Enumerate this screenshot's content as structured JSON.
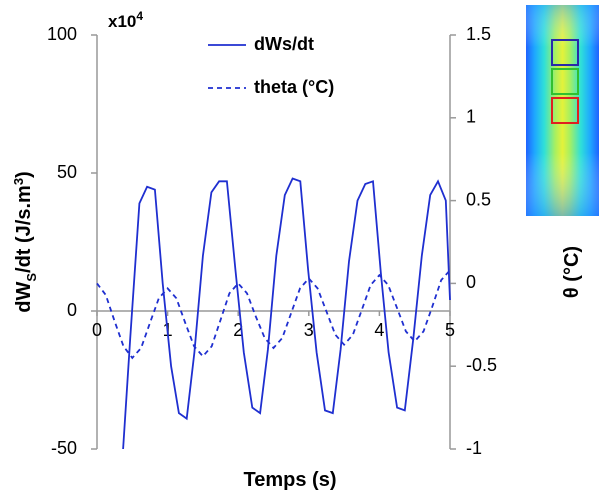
{
  "chart_data": {
    "type": "line",
    "xlabel": "Temps (s)",
    "ylabel": [
      "dW",
      "S",
      "/dt (J/s.m",
      "3",
      ")"
    ],
    "y2label": "θ (°C)",
    "y_multiplier": [
      "x10",
      "4"
    ],
    "xlim": [
      0,
      5
    ],
    "xticks": [
      0,
      1,
      2,
      3,
      4,
      5
    ],
    "ylim": [
      -50,
      100
    ],
    "yticks": [
      -50,
      0,
      50,
      100
    ],
    "y2lim": [
      -1,
      1.5
    ],
    "y2ticks": [
      -1,
      -0.5,
      0,
      0.5,
      1,
      1.5
    ],
    "series": [
      {
        "name": "dWs/dt",
        "color": "#1f2fd0",
        "dash": false,
        "x": [
          0.37,
          0.47,
          0.6,
          0.71,
          0.82,
          0.93,
          1.05,
          1.16,
          1.27,
          1.38,
          1.5,
          1.62,
          1.73,
          1.84,
          1.96,
          2.08,
          2.2,
          2.31,
          2.42,
          2.54,
          2.66,
          2.77,
          2.88,
          2.99,
          3.11,
          3.23,
          3.34,
          3.45,
          3.57,
          3.69,
          3.8,
          3.91,
          4.02,
          4.13,
          4.25,
          4.36,
          4.48,
          4.6,
          4.72,
          4.83,
          4.94,
          5
        ],
        "values": [
          -50,
          -10,
          39,
          45,
          44,
          10,
          -20,
          -37,
          -39,
          -15,
          20,
          43,
          47,
          47,
          15,
          -15,
          -35,
          -37,
          -14,
          20,
          42,
          48,
          47,
          15,
          -15,
          -36,
          -37,
          -14,
          18,
          40,
          46,
          47,
          14,
          -15,
          -35,
          -36,
          -10,
          20,
          42,
          47,
          40,
          4
        ]
      },
      {
        "name": "theta (°C)",
        "color": "#1f2fd0",
        "dash": true,
        "axis": "y2",
        "x": [
          0,
          0.125,
          0.25,
          0.375,
          0.5,
          0.625,
          0.75,
          0.875,
          1,
          1.125,
          1.25,
          1.375,
          1.5,
          1.625,
          1.75,
          1.875,
          2,
          2.125,
          2.25,
          2.375,
          2.5,
          2.625,
          2.75,
          2.875,
          3,
          3.125,
          3.25,
          3.375,
          3.5,
          3.625,
          3.75,
          3.875,
          4,
          4.125,
          4.25,
          4.375,
          4.5,
          4.625,
          4.75,
          4.875,
          5
        ],
        "values": [
          0,
          -0.07,
          -0.23,
          -0.38,
          -0.45,
          -0.39,
          -0.24,
          -0.09,
          -0.03,
          -0.09,
          -0.24,
          -0.38,
          -0.44,
          -0.38,
          -0.22,
          -0.06,
          0,
          -0.06,
          -0.2,
          -0.33,
          -0.39,
          -0.33,
          -0.18,
          -0.03,
          0.03,
          -0.03,
          -0.17,
          -0.31,
          -0.37,
          -0.31,
          -0.16,
          -0.01,
          0.05,
          -0.01,
          -0.15,
          -0.29,
          -0.35,
          -0.29,
          -0.14,
          0.02,
          0.08
        ]
      }
    ]
  }
}
